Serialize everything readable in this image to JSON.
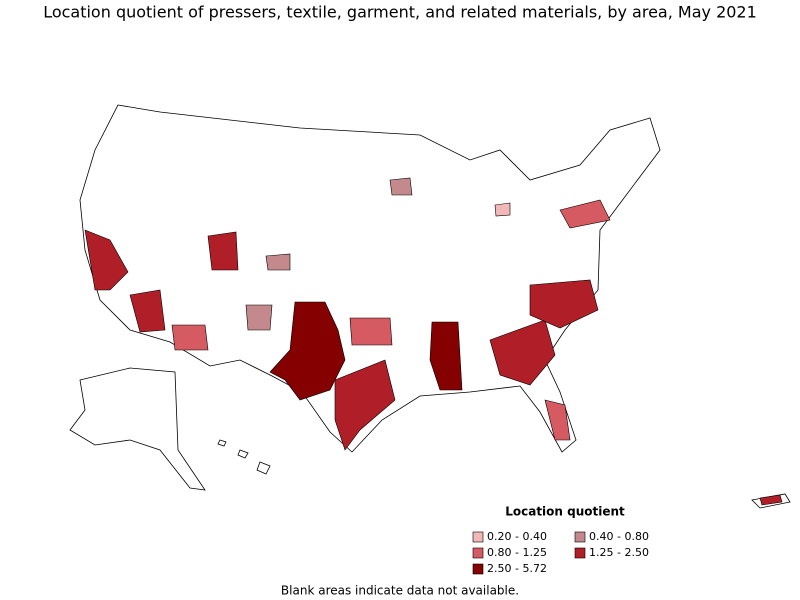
{
  "title": "Location quotient of pressers, textile, garment, and related materials, by area, May 2021",
  "legend": {
    "title": "Location quotient",
    "items": [
      {
        "label": "0.20 - 0.40",
        "color": "#f2b8b8"
      },
      {
        "label": "0.40 - 0.80",
        "color": "#c4898c"
      },
      {
        "label": "0.80 - 1.25",
        "color": "#d65a61"
      },
      {
        "label": "1.25 - 2.50",
        "color": "#b01e28"
      },
      {
        "label": "2.50 - 5.72",
        "color": "#850000"
      }
    ]
  },
  "footnote": "Blank areas indicate data not available."
}
